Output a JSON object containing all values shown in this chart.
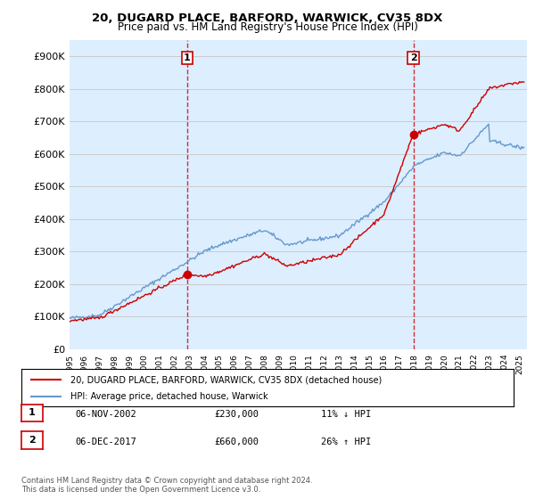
{
  "title": "20, DUGARD PLACE, BARFORD, WARWICK, CV35 8DX",
  "subtitle": "Price paid vs. HM Land Registry's House Price Index (HPI)",
  "ylabel_ticks": [
    "£0",
    "£100K",
    "£200K",
    "£300K",
    "£400K",
    "£500K",
    "£600K",
    "£700K",
    "£800K",
    "£900K"
  ],
  "ytick_values": [
    0,
    100000,
    200000,
    300000,
    400000,
    500000,
    600000,
    700000,
    800000,
    900000
  ],
  "ylim": [
    0,
    950000
  ],
  "xlim_start": 1995.0,
  "xlim_end": 2025.5,
  "purchase1": {
    "date_x": 2002.85,
    "price": 230000,
    "label": "1",
    "color": "#cc0000"
  },
  "purchase2": {
    "date_x": 2017.92,
    "price": 660000,
    "label": "2",
    "color": "#cc0000"
  },
  "vline1_x": 2002.85,
  "vline2_x": 2017.92,
  "legend_line1_label": "20, DUGARD PLACE, BARFORD, WARWICK, CV35 8DX (detached house)",
  "legend_line2_label": "HPI: Average price, detached house, Warwick",
  "table_rows": [
    {
      "num": "1",
      "date": "06-NOV-2002",
      "price": "£230,000",
      "hpi": "11% ↓ HPI"
    },
    {
      "num": "2",
      "date": "06-DEC-2017",
      "price": "£660,000",
      "hpi": "26% ↑ HPI"
    }
  ],
  "footnote": "Contains HM Land Registry data © Crown copyright and database right 2024.\nThis data is licensed under the Open Government Licence v3.0.",
  "hpi_color": "#6699cc",
  "price_color": "#cc0000",
  "grid_color": "#cccccc",
  "background_color": "#ffffff",
  "plot_bg_color": "#ddeeff"
}
